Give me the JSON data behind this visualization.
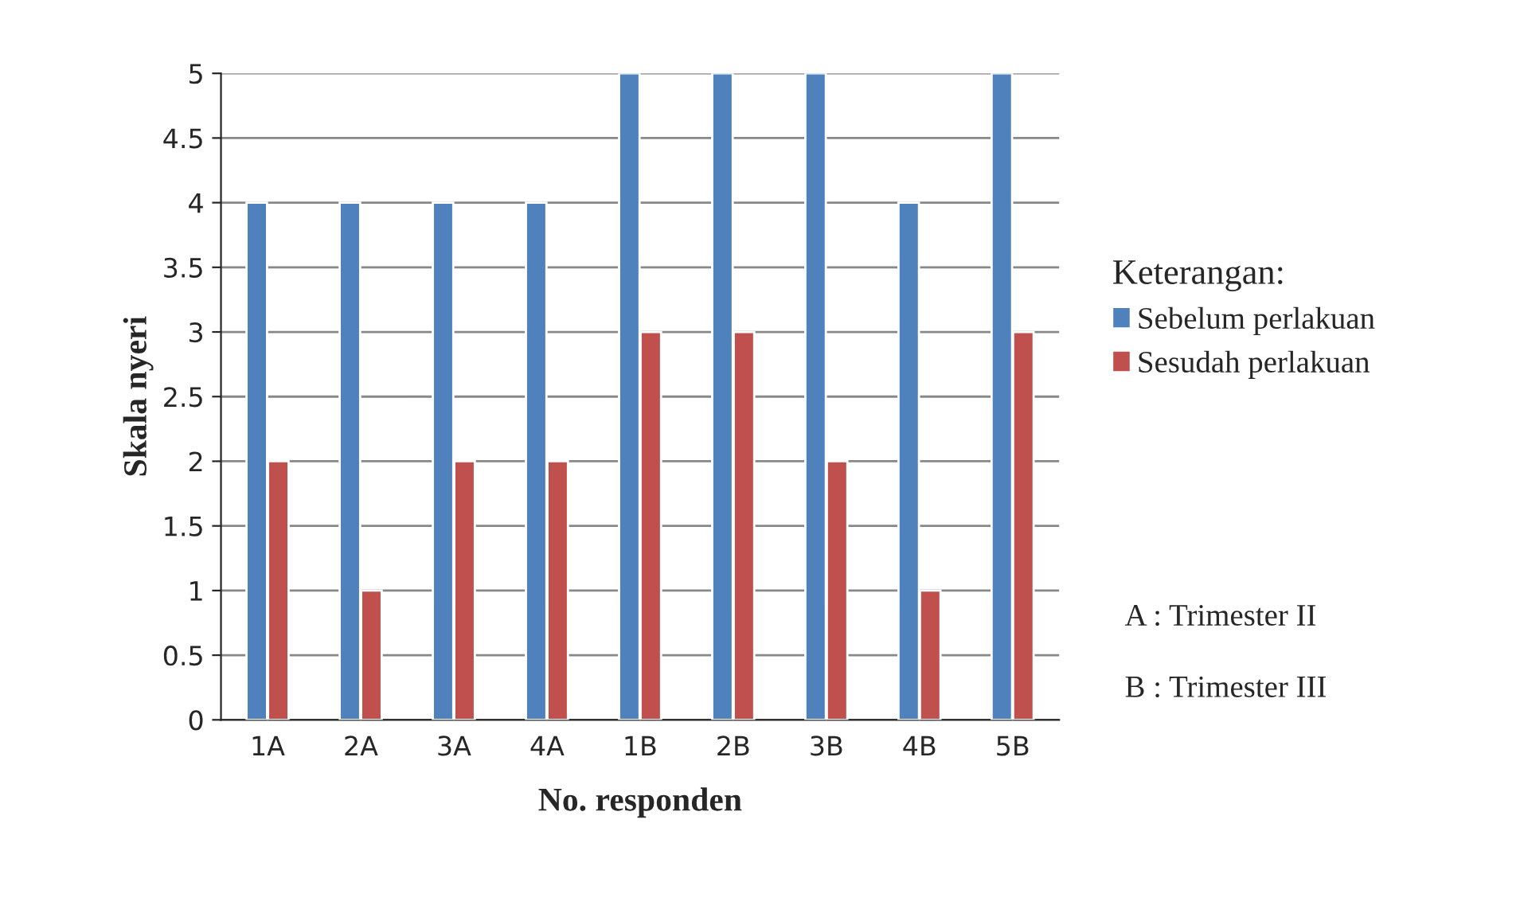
{
  "chart_data": {
    "type": "bar",
    "xlabel": "No. responden",
    "ylabel": "Skala nyeri",
    "legend_title": "Keterangan:",
    "categories": [
      "1A",
      "2A",
      "3A",
      "4A",
      "1B",
      "2B",
      "3B",
      "4B",
      "5B"
    ],
    "series": [
      {
        "name": "Sebelum perlakuan",
        "color": "#4f81bd",
        "values": [
          4,
          4,
          4,
          4,
          5,
          5,
          5,
          4,
          5
        ]
      },
      {
        "name": "Sesudah perlakuan",
        "color": "#c0504d",
        "values": [
          2,
          1,
          2,
          2,
          3,
          3,
          2,
          1,
          3
        ]
      }
    ],
    "ylim": [
      0,
      5
    ],
    "yticks": [
      0,
      0.5,
      1,
      1.5,
      2,
      2.5,
      3,
      3.5,
      4,
      4.5,
      5
    ],
    "grid": "y",
    "legend": "right",
    "annotations": [
      "A : Trimester II",
      "B : Trimester III"
    ]
  }
}
